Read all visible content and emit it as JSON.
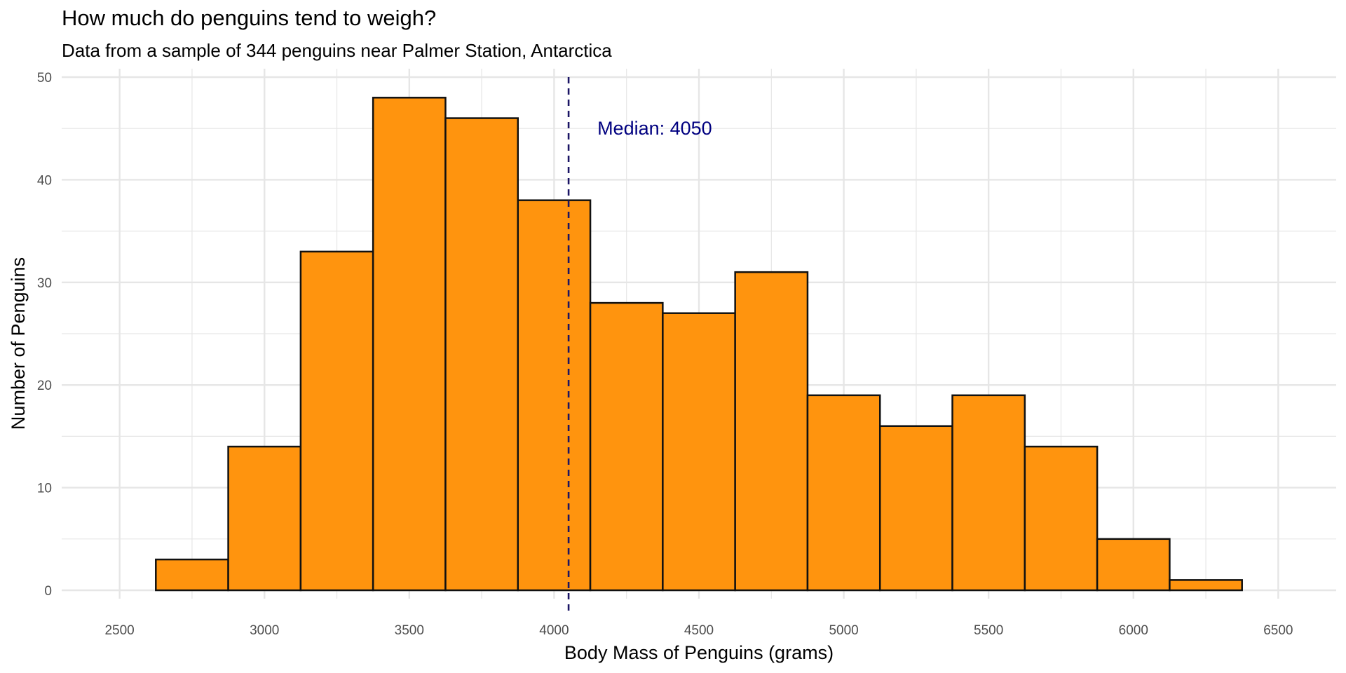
{
  "chart_data": {
    "type": "bar",
    "title": "How much do penguins tend to weigh?",
    "subtitle": "Data from a sample of 344 penguins near Palmer Station, Antarctica",
    "xlabel": "Body Mass of Penguins (grams)",
    "ylabel": "Number of Penguins",
    "xlim": [
      2300,
      6700
    ],
    "ylim": [
      0,
      50
    ],
    "x_ticks": [
      2500,
      3000,
      3500,
      4000,
      4500,
      5000,
      5500,
      6000,
      6500
    ],
    "y_ticks": [
      0,
      10,
      20,
      30,
      40,
      50
    ],
    "grid": true,
    "bin_width": 250,
    "bins": [
      {
        "start": 2625,
        "end": 2875,
        "count": 3
      },
      {
        "start": 2875,
        "end": 3125,
        "count": 14
      },
      {
        "start": 3125,
        "end": 3375,
        "count": 33
      },
      {
        "start": 3375,
        "end": 3625,
        "count": 48
      },
      {
        "start": 3625,
        "end": 3875,
        "count": 46
      },
      {
        "start": 3875,
        "end": 4125,
        "count": 38
      },
      {
        "start": 4125,
        "end": 4375,
        "count": 28
      },
      {
        "start": 4375,
        "end": 4625,
        "count": 27
      },
      {
        "start": 4625,
        "end": 4875,
        "count": 31
      },
      {
        "start": 4875,
        "end": 5125,
        "count": 19
      },
      {
        "start": 5125,
        "end": 5375,
        "count": 16
      },
      {
        "start": 5375,
        "end": 5625,
        "count": 19
      },
      {
        "start": 5625,
        "end": 5875,
        "count": 14
      },
      {
        "start": 5875,
        "end": 6125,
        "count": 5
      },
      {
        "start": 6125,
        "end": 6375,
        "count": 1
      }
    ],
    "median": {
      "value": 4050,
      "label": "Median: 4050",
      "label_y": 45
    },
    "colors": {
      "fill": "#ff940e",
      "stroke": "#111111",
      "median_line": "#1a1464",
      "median_text": "#000080",
      "grid": "#e6e6e6"
    }
  }
}
